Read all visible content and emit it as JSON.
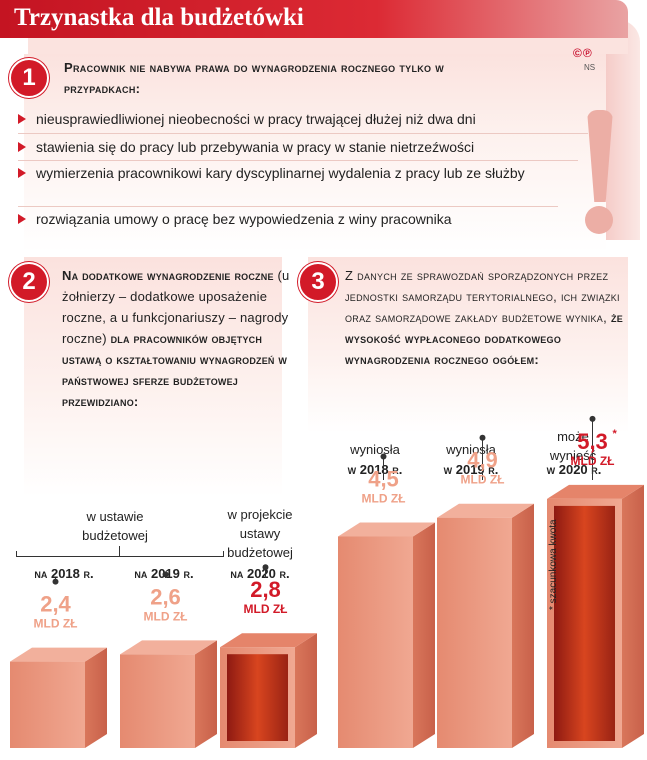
{
  "header": {
    "title": "Trzynastka dla budżetówki"
  },
  "logo": {
    "text": "©℗",
    "sub": "NS"
  },
  "section1": {
    "number": "1",
    "heading": "Pracownik nie nabywa prawa do wynagrodzenia rocznego tylko w przypadkach:",
    "items": [
      "nieusprawiedliwionej nieobecności w pracy trwającej dłużej niż dwa dni",
      "stawienia się do pracy lub przebywania w pracy w stanie nietrzeźwości",
      "wymierzenia pracownikowi kary dyscyplinarnej wydalenia z pracy lub ze służby",
      "rozwiązania umowy o pracę bez wypowiedzenia z winy pracownika"
    ]
  },
  "section2": {
    "number": "2",
    "part1": "Na dodatkowe wynagrodzenie roczne",
    "part2": "(u żołnierzy – dodatkowe uposażenie roczne, a u funkcjonariuszy – nagrody roczne)",
    "part3": "dla pracowników objętych ustawą o kształtowaniu wynagrodzeń w państwowej sferze budżetowej przewidziano:",
    "group_label": "w ustawie budżetowej",
    "projection_label": "w projekcie ustawy budżetowej",
    "bars": [
      {
        "year": "na 2018 r.",
        "value": "2,4",
        "unit": "mld zł",
        "amount": 2.4
      },
      {
        "year": "na 2019 r.",
        "value": "2,6",
        "unit": "mld zł",
        "amount": 2.6
      },
      {
        "year": "na 2020 r.",
        "value": "2,8",
        "unit": "mld zł",
        "amount": 2.8
      }
    ]
  },
  "section3": {
    "number": "3",
    "text": "Z danych ze sprawozdań sporządzonych przez jednostki samorządu terytorialnego, ich związki oraz samorządowe zakłady budżetowe wynika,",
    "bold": "że wysokość wypłaconego dodatkowego wynagrodzenia rocznego ogółem:",
    "bars": [
      {
        "label": "wyniosła",
        "year": "w 2018 r.",
        "value": "4,5",
        "unit": "mld zł",
        "amount": 4.5
      },
      {
        "label": "wyniosła",
        "year": "w 2019 r.",
        "value": "4,9",
        "unit": "mld zł",
        "amount": 4.9
      },
      {
        "label": "może wynieść",
        "year": "w 2020 r.",
        "value": "5,3",
        "asterisk": "*",
        "unit": "mld zł",
        "amount": 5.3
      }
    ],
    "footnote": "* szacunkowa kwota"
  },
  "colors": {
    "accent": "#d21a28",
    "bar": "#e8957c",
    "value": "#efa188"
  }
}
